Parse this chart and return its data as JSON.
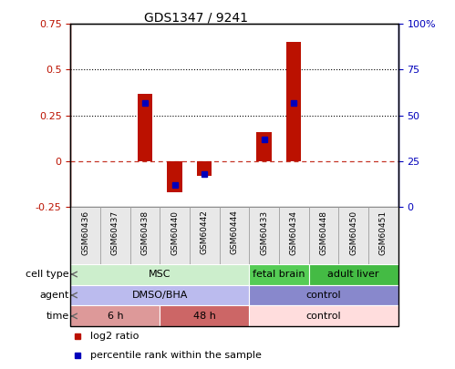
{
  "title": "GDS1347 / 9241",
  "samples": [
    "GSM60436",
    "GSM60437",
    "GSM60438",
    "GSM60440",
    "GSM60442",
    "GSM60444",
    "GSM60433",
    "GSM60434",
    "GSM60448",
    "GSM60450",
    "GSM60451"
  ],
  "log2_ratio": [
    0,
    0,
    0.37,
    -0.17,
    -0.08,
    0,
    0.16,
    0.65,
    0,
    0,
    0
  ],
  "percentile_rank": [
    null,
    null,
    57,
    12,
    18,
    null,
    37,
    57,
    null,
    null,
    null
  ],
  "ylim_left": [
    -0.25,
    0.75
  ],
  "ylim_right": [
    0,
    100
  ],
  "yticks_left": [
    -0.25,
    0,
    0.25,
    0.5,
    0.75
  ],
  "yticks_right": [
    0,
    25,
    50,
    75,
    100
  ],
  "hlines_black": [
    0.5,
    0.25
  ],
  "bar_color": "#bb1100",
  "dot_color": "#0000bb",
  "cell_type_groups": [
    {
      "label": "MSC",
      "start": 0,
      "end": 5,
      "color": "#cceecc"
    },
    {
      "label": "fetal brain",
      "start": 6,
      "end": 7,
      "color": "#55cc55"
    },
    {
      "label": "adult liver",
      "start": 8,
      "end": 10,
      "color": "#44bb44"
    }
  ],
  "agent_groups": [
    {
      "label": "DMSO/BHA",
      "start": 0,
      "end": 5,
      "color": "#bbbbee"
    },
    {
      "label": "control",
      "start": 6,
      "end": 10,
      "color": "#8888cc"
    }
  ],
  "time_groups": [
    {
      "label": "6 h",
      "start": 0,
      "end": 2,
      "color": "#dd9999"
    },
    {
      "label": "48 h",
      "start": 3,
      "end": 5,
      "color": "#cc6666"
    },
    {
      "label": "control",
      "start": 6,
      "end": 10,
      "color": "#ffdddd"
    }
  ],
  "row_labels": [
    "cell type",
    "agent",
    "time"
  ],
  "legend_label_red": "log2 ratio",
  "legend_label_blue": "percentile rank within the sample",
  "background_color": "#ffffff",
  "group_separators": [
    5.5,
    7.5
  ],
  "time_separator": 2.5
}
